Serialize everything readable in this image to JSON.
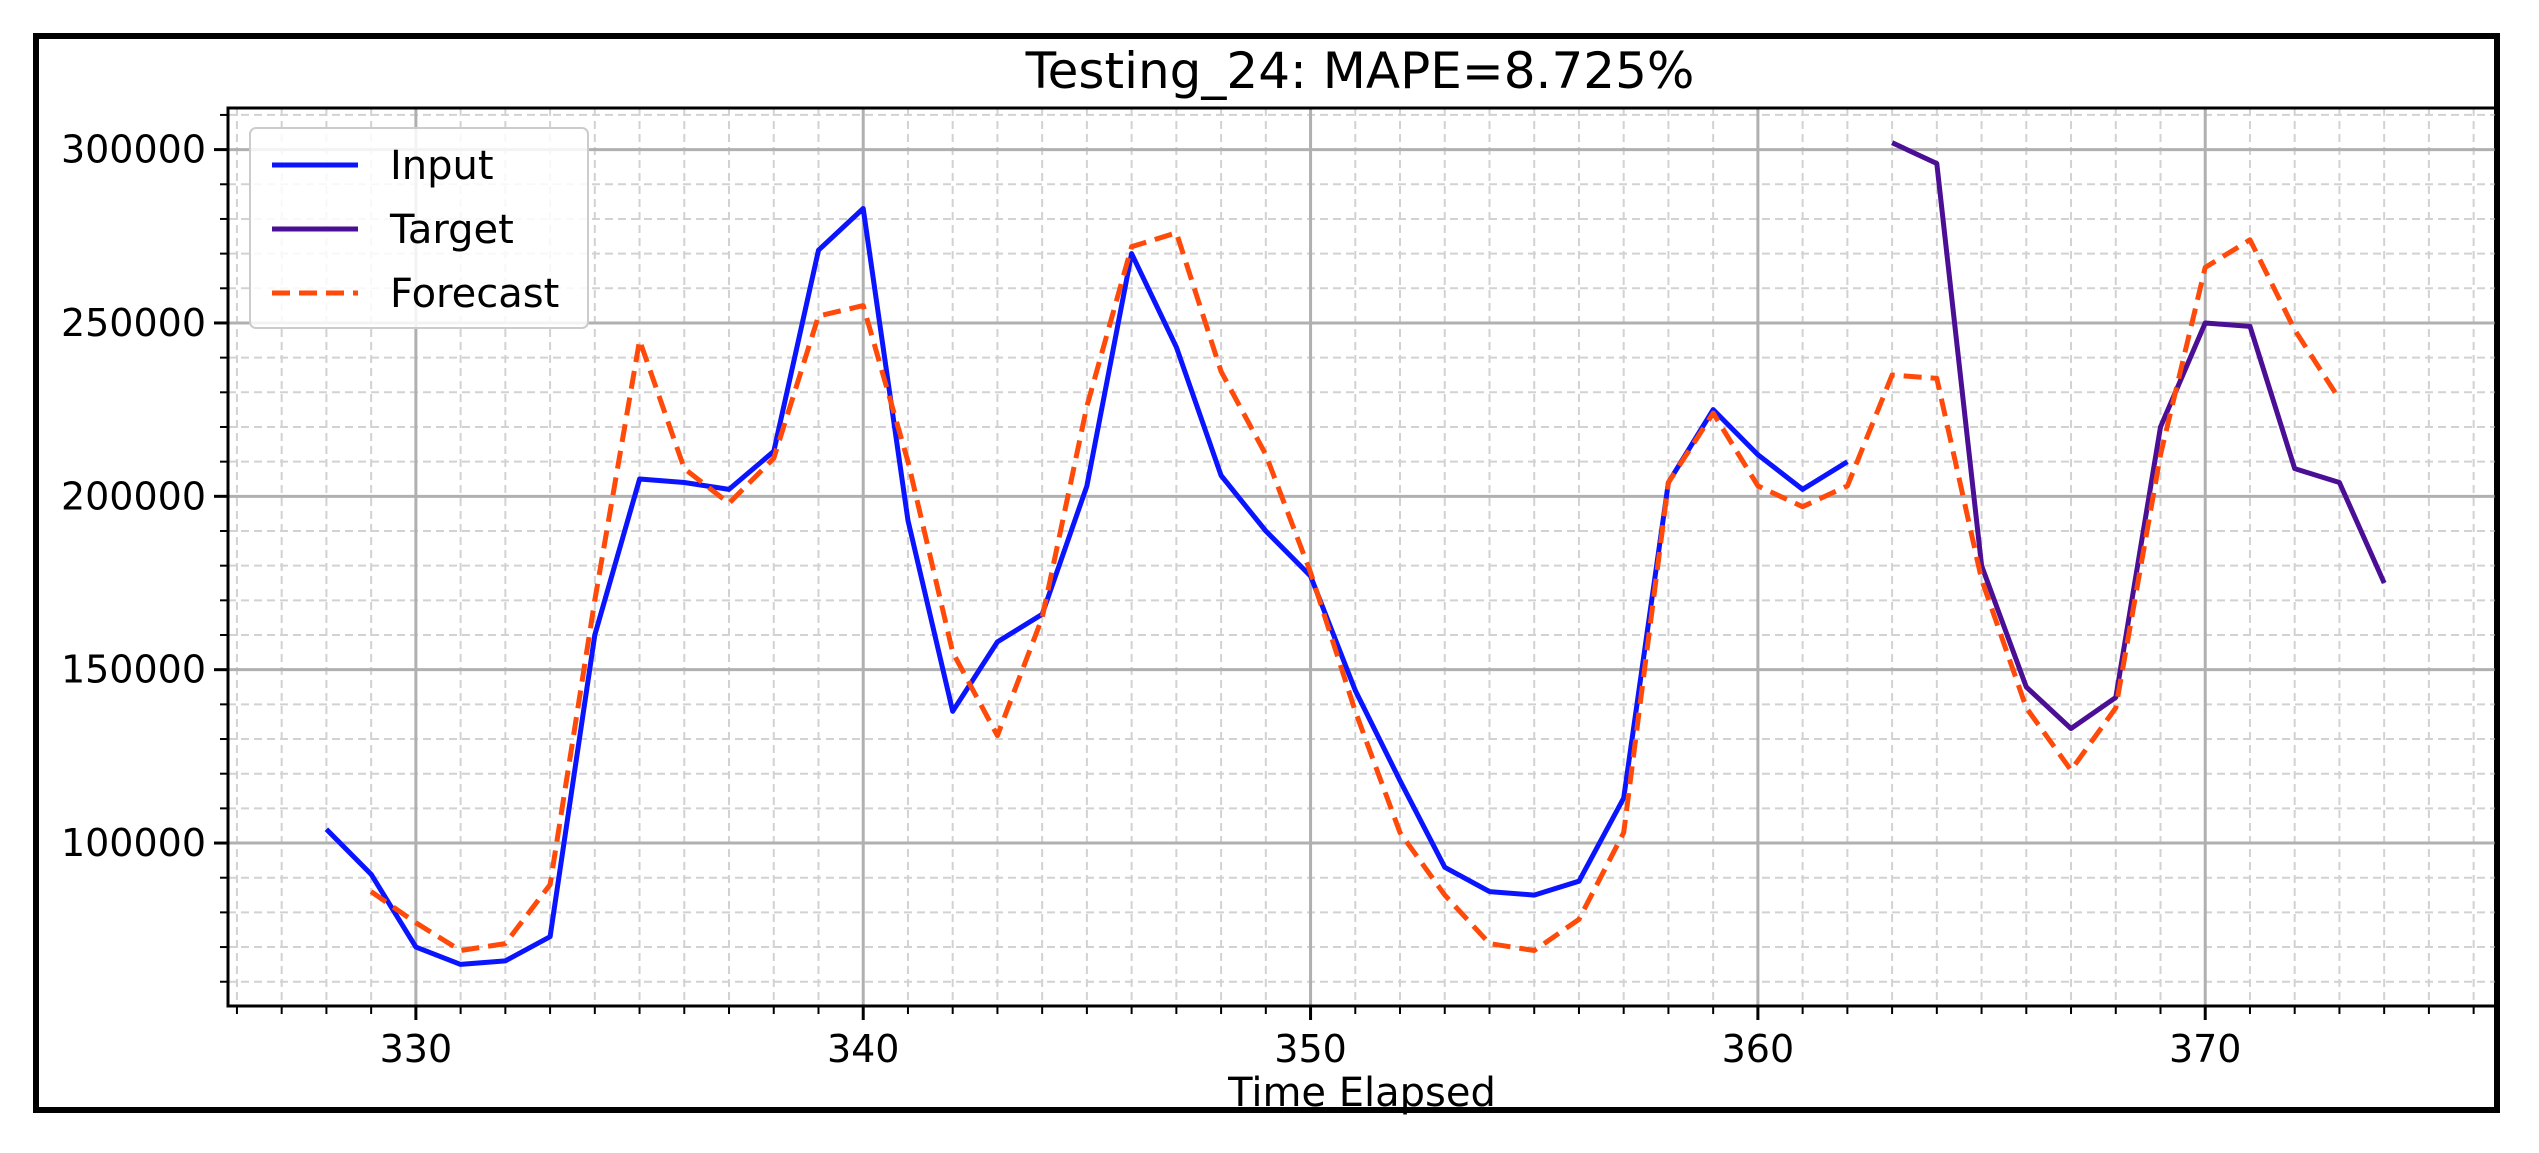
{
  "chart_data": {
    "type": "line",
    "title": "Testing_24: MAPE=8.725%",
    "xlabel": "Time Elapsed",
    "ylabel": "",
    "xlim": [
      325.8,
      376.5
    ],
    "ylim": [
      53000,
      312000
    ],
    "xticks": [
      330,
      340,
      350,
      360,
      370
    ],
    "xtick_labels": [
      "330",
      "340",
      "350",
      "360",
      "370"
    ],
    "yticks": [
      100000,
      150000,
      200000,
      250000,
      300000
    ],
    "ytick_labels": [
      "100000",
      "150000",
      "200000",
      "250000",
      "300000"
    ],
    "grid": true,
    "legend_position": "top-left",
    "series": [
      {
        "name": "Input",
        "color": "#0a14ff",
        "style": "solid",
        "x": [
          328,
          329,
          330,
          331,
          332,
          333,
          334,
          335,
          336,
          337,
          338,
          339,
          340,
          341,
          342,
          343,
          344,
          345,
          346,
          347,
          348,
          349,
          350,
          351,
          352,
          353,
          354,
          355,
          356,
          357,
          358,
          359,
          360,
          361,
          362
        ],
        "values": [
          104000,
          91000,
          70000,
          65000,
          66000,
          73000,
          160000,
          205000,
          204000,
          202000,
          213000,
          271000,
          283000,
          193000,
          138000,
          158000,
          166000,
          203000,
          270000,
          243000,
          206000,
          190000,
          177000,
          144000,
          118000,
          93000,
          86000,
          85000,
          89000,
          113000,
          204000,
          225000,
          212000,
          202000,
          210000
        ]
      },
      {
        "name": "Target",
        "color": "#4b0f96",
        "style": "solid",
        "x": [
          363,
          364,
          365,
          366,
          367,
          368,
          369,
          370,
          371,
          372,
          373,
          374
        ],
        "values": [
          302000,
          296000,
          180000,
          145000,
          133000,
          142000,
          220000,
          250000,
          249000,
          208000,
          204000,
          175000
        ]
      },
      {
        "name": "Forecast",
        "color": "#ff4a0a",
        "style": "dashed",
        "x": [
          329,
          330,
          331,
          332,
          333,
          334,
          335,
          336,
          337,
          338,
          339,
          340,
          341,
          342,
          343,
          344,
          345,
          346,
          347,
          348,
          349,
          350,
          351,
          352,
          353,
          354,
          355,
          356,
          357,
          358,
          359,
          360,
          361,
          362,
          363,
          364,
          365,
          366,
          367,
          368,
          369,
          370,
          371,
          372,
          373
        ],
        "values": [
          86000,
          77000,
          69000,
          71000,
          88000,
          170000,
          245000,
          208000,
          198000,
          211000,
          252000,
          255000,
          210000,
          155000,
          131000,
          165000,
          226000,
          272000,
          276000,
          236000,
          212000,
          178000,
          138000,
          103000,
          85000,
          71000,
          69000,
          78000,
          103000,
          204000,
          224000,
          203000,
          197000,
          203000,
          235000,
          234000,
          176000,
          139000,
          121000,
          139000,
          212000,
          266000,
          274000,
          248000,
          228000
        ]
      }
    ]
  }
}
